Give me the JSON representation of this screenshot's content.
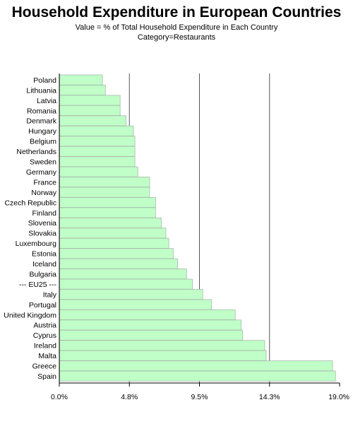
{
  "header": {
    "title": "Household Expenditure in European Countries",
    "subtitle_line1": "Value = % of Total Household Expenditure in Each Country",
    "subtitle_line2": "Category=Restaurants"
  },
  "colors": {
    "bar_fill": "#c0ffc8",
    "bar_stroke": "#a9b8ac",
    "axis": "#000000",
    "reference_lines": "#555555"
  },
  "chart_data": {
    "type": "bar",
    "orientation": "horizontal",
    "title": "Household Expenditure in European Countries",
    "subtitle": [
      "Value = % of Total Household Expenditure in Each Country",
      "Category=Restaurants"
    ],
    "xlabel": "",
    "ylabel": "",
    "xlim": [
      0,
      19.0
    ],
    "ticks": [
      0,
      4.75,
      9.5,
      14.25,
      19.0
    ],
    "tick_labels": [
      "0.0%",
      "4.8%",
      "9.5%",
      "14.3%",
      "19.0%"
    ],
    "reference_lines_at": [
      4.75,
      9.5,
      14.25
    ],
    "grid": false,
    "legend": "none",
    "categories": [
      "Poland",
      "Lithuania",
      "Latvia",
      "Romania",
      "Denmark",
      "Hungary",
      "Belgium",
      "Netherlands",
      "Sweden",
      "Germany",
      "France",
      "Norway",
      "Czech Republic",
      "Finland",
      "Slovenia",
      "Slovakia",
      "Luxembourg",
      "Estonia",
      "Iceland",
      "Bulgaria",
      "--- EU25 ---",
      "Italy",
      "Portugal",
      "United Kingdom",
      "Austria",
      "Cyprus",
      "Ireland",
      "Malta",
      "Greece",
      "Spain"
    ],
    "values": [
      2.9,
      3.1,
      4.1,
      4.1,
      4.5,
      5.0,
      5.1,
      5.1,
      5.1,
      5.3,
      6.1,
      6.1,
      6.5,
      6.5,
      6.9,
      7.2,
      7.4,
      7.7,
      8.0,
      8.6,
      9.0,
      9.7,
      10.3,
      11.9,
      12.3,
      12.4,
      13.9,
      14.0,
      18.5,
      18.7
    ]
  }
}
